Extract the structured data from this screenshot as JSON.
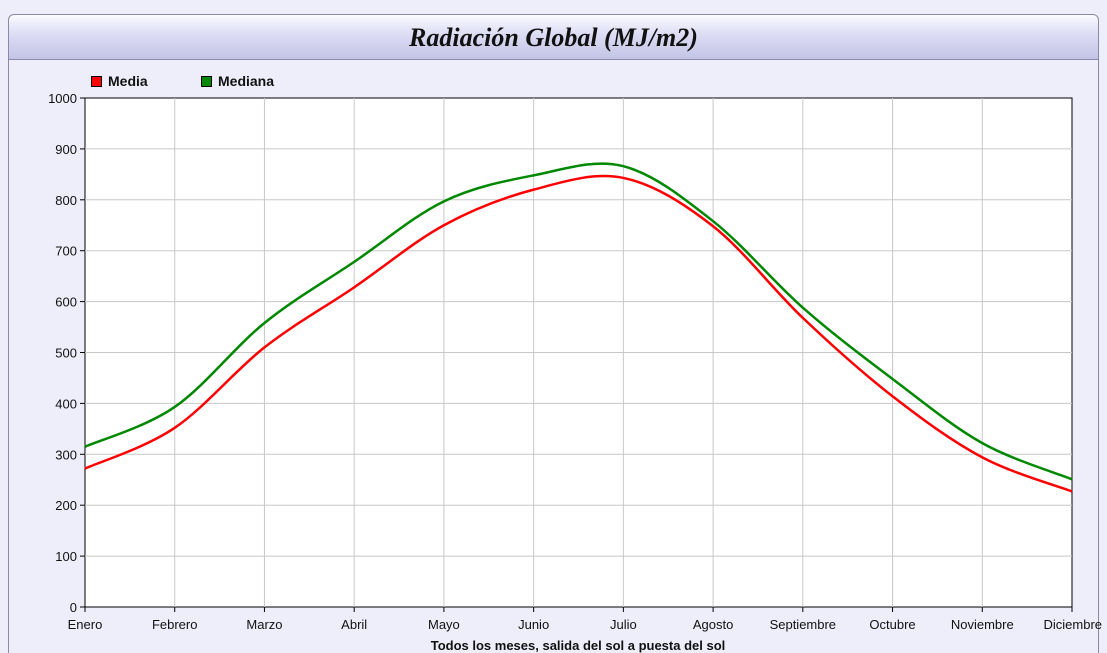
{
  "chart_data": {
    "type": "line",
    "title": "Radiación Global (MJ/m2)",
    "xlabel": "Todos los meses, salida del sol a puesta del sol",
    "ylabel": "",
    "categories": [
      "Enero",
      "Febrero",
      "Marzo",
      "Abril",
      "Mayo",
      "Junio",
      "Julio",
      "Agosto",
      "Septiembre",
      "Octubre",
      "Noviembre",
      "Diciembre"
    ],
    "ylim": [
      0,
      1000
    ],
    "yticks": [
      "0",
      "100",
      "200",
      "300",
      "400",
      "500",
      "600",
      "700",
      "800",
      "900",
      "1000"
    ],
    "grid": true,
    "legend_position": "top-left",
    "series": [
      {
        "name": "Media",
        "color": "#ff0000",
        "values": [
          272,
          352,
          510,
          628,
          750,
          820,
          843,
          748,
          568,
          414,
          294,
          227
        ]
      },
      {
        "name": "Mediana",
        "color": "#008800",
        "values": [
          315,
          393,
          558,
          678,
          797,
          848,
          866,
          758,
          588,
          448,
          322,
          251
        ]
      }
    ]
  }
}
